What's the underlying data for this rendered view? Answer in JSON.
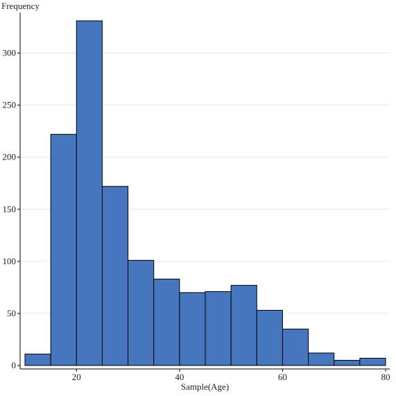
{
  "chart_data": {
    "type": "bar",
    "subtype": "histogram",
    "ylabel": "Frequency",
    "xlabel": "Sample(Age)",
    "bins": [
      {
        "start": 10,
        "end": 15,
        "count": 11
      },
      {
        "start": 15,
        "end": 20,
        "count": 222
      },
      {
        "start": 20,
        "end": 25,
        "count": 331
      },
      {
        "start": 25,
        "end": 30,
        "count": 172
      },
      {
        "start": 30,
        "end": 35,
        "count": 101
      },
      {
        "start": 35,
        "end": 40,
        "count": 83
      },
      {
        "start": 40,
        "end": 45,
        "count": 70
      },
      {
        "start": 45,
        "end": 50,
        "count": 71
      },
      {
        "start": 50,
        "end": 55,
        "count": 77
      },
      {
        "start": 55,
        "end": 60,
        "count": 53
      },
      {
        "start": 60,
        "end": 65,
        "count": 35
      },
      {
        "start": 65,
        "end": 70,
        "count": 12
      },
      {
        "start": 70,
        "end": 75,
        "count": 5
      },
      {
        "start": 75,
        "end": 80,
        "count": 7
      }
    ],
    "xlim": [
      10,
      80
    ],
    "ylim": [
      0,
      335
    ],
    "xticks": [
      20,
      40,
      60,
      80
    ],
    "yticks": [
      0,
      50,
      100,
      150,
      200,
      250,
      300
    ],
    "grid": {
      "horizontal": true,
      "vertical": false
    },
    "colors": {
      "bar_fill": "#4677be",
      "bar_stroke": "#000000",
      "grid": "#e6e6e6"
    }
  }
}
